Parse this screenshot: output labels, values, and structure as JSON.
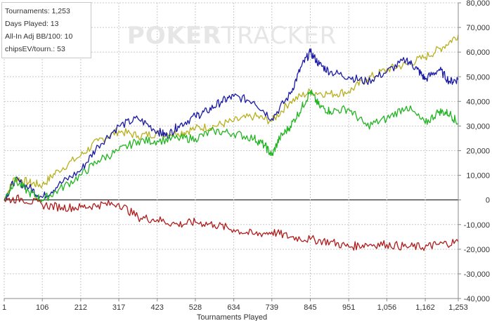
{
  "watermark": {
    "text_poker": "POKER",
    "text_tracker": "TRACKER"
  },
  "stats": [
    {
      "label": "Tournaments:",
      "value": "1,253"
    },
    {
      "label": "Days Played:",
      "value": "13"
    },
    {
      "label": "All-In Adj BB/100:",
      "value": "10"
    },
    {
      "label": "chipsEV/tourn.:",
      "value": "53"
    }
  ],
  "colors": {
    "blue": "#1a1aa6",
    "olive": "#b8b01e",
    "green": "#22b422",
    "red": "#b01c1c",
    "grid": "#c8c8c8",
    "zero_line": "#000000",
    "axis_text": "#333333"
  },
  "chart_data": {
    "type": "line",
    "xlabel": "Tournaments Played",
    "ylabel": "",
    "xlim": [
      1,
      1253
    ],
    "ylim": [
      -40000,
      80000
    ],
    "x_ticks": [
      "1",
      "106",
      "212",
      "317",
      "423",
      "528",
      "634",
      "739",
      "845",
      "951",
      "1,056",
      "1,162",
      "1,253"
    ],
    "x_tick_values": [
      1,
      106,
      212,
      317,
      423,
      528,
      634,
      739,
      845,
      951,
      1056,
      1162,
      1253
    ],
    "y_ticks": [
      "80,000",
      "70,000",
      "60,000",
      "50,000",
      "40,000",
      "30,000",
      "20,000",
      "10,000",
      "0",
      "-10,000",
      "-20,000",
      "-30,000",
      "-40,000"
    ],
    "y_tick_values": [
      80000,
      70000,
      60000,
      50000,
      40000,
      30000,
      20000,
      10000,
      0,
      -10000,
      -20000,
      -30000,
      -40000
    ],
    "grid": true,
    "series": [
      {
        "color_key": "olive",
        "x": [
          1,
          30,
          70,
          106,
          150,
          212,
          260,
          317,
          370,
          423,
          480,
          528,
          580,
          634,
          690,
          739,
          790,
          845,
          900,
          951,
          1000,
          1056,
          1110,
          1162,
          1210,
          1253
        ],
        "y": [
          0,
          9000,
          7000,
          6000,
          12000,
          18000,
          24000,
          28000,
          26000,
          27000,
          27000,
          29000,
          30000,
          32000,
          34000,
          32000,
          40000,
          44000,
          43000,
          44000,
          49000,
          53000,
          55000,
          58000,
          62000,
          67000
        ]
      },
      {
        "color_key": "blue",
        "x": [
          1,
          30,
          70,
          106,
          150,
          212,
          260,
          317,
          370,
          423,
          450,
          480,
          528,
          560,
          600,
          634,
          690,
          739,
          790,
          820,
          845,
          870,
          900,
          951,
          1000,
          1056,
          1110,
          1140,
          1162,
          1200,
          1230,
          1253
        ],
        "y": [
          0,
          8000,
          5000,
          1000,
          6000,
          12000,
          22000,
          30000,
          33000,
          28000,
          26000,
          30000,
          34000,
          36000,
          40000,
          42000,
          40000,
          33000,
          43000,
          54000,
          60000,
          55000,
          52000,
          50000,
          48000,
          52000,
          57000,
          53000,
          49000,
          53000,
          48000,
          49000
        ]
      },
      {
        "color_key": "green",
        "x": [
          1,
          30,
          70,
          106,
          150,
          212,
          260,
          317,
          370,
          423,
          480,
          528,
          580,
          634,
          690,
          720,
          739,
          760,
          790,
          820,
          845,
          870,
          900,
          951,
          1000,
          1056,
          1110,
          1162,
          1200,
          1230,
          1253
        ],
        "y": [
          0,
          8000,
          3000,
          0,
          4000,
          10000,
          16000,
          20000,
          24000,
          24000,
          25000,
          25000,
          28000,
          27000,
          25000,
          22000,
          18000,
          25000,
          30000,
          37000,
          44000,
          38000,
          36000,
          37000,
          30000,
          33000,
          38000,
          31000,
          36000,
          35000,
          31000
        ]
      },
      {
        "color_key": "red",
        "x": [
          1,
          50,
          106,
          160,
          212,
          260,
          317,
          370,
          423,
          480,
          528,
          580,
          634,
          690,
          739,
          790,
          845,
          900,
          951,
          1000,
          1056,
          1110,
          1162,
          1200,
          1253
        ],
        "y": [
          0,
          500,
          -2000,
          -3000,
          -3000,
          -2000,
          -1500,
          -7000,
          -8000,
          -10000,
          -9000,
          -10000,
          -12000,
          -14000,
          -13000,
          -15000,
          -16000,
          -17000,
          -19000,
          -18000,
          -18000,
          -19000,
          -19000,
          -18000,
          -17000
        ]
      }
    ]
  }
}
